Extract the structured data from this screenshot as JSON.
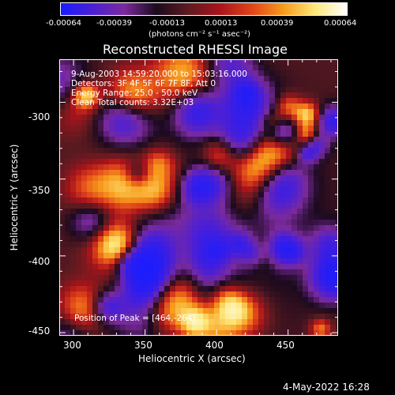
{
  "colorbar": {
    "ticks": [
      "-0.00064",
      "-0.00039",
      "-0.00013",
      "0.00013",
      "0.00039",
      "0.00064"
    ],
    "unit": "(photons cm⁻² s⁻¹ asec⁻²)",
    "colors": [
      "#1a1cff",
      "#4b1fd6",
      "#7a2a9c",
      "#1b0a1e",
      "#5d1a20",
      "#a8141b",
      "#e0431a",
      "#f79a1c",
      "#fde87a",
      "#ffffff"
    ]
  },
  "chart_data": {
    "type": "heatmap",
    "title": "Reconstructed RHESSI Image",
    "xlabel": "Heliocentric X (arcsec)",
    "ylabel": "Heliocentric Y (arcsec)",
    "xlim": [
      290,
      485
    ],
    "ylim": [
      -452,
      -272
    ],
    "xticks": [
      300,
      350,
      400,
      450
    ],
    "yticks": [
      -300,
      -350,
      -400,
      -450
    ],
    "value_range": [
      -0.00064,
      0.00064
    ],
    "annotations": [
      "9-Aug-2003 14:59:20.000 to 15:03:16.000",
      "Detectors: 3F 4F 5F 6F 7F 8F, Att 0",
      "Energy Range: 25.0 - 50.0 keV",
      "Clean     Total counts: 3.32E+03"
    ],
    "peak_label": "Position of Peak = [464,-264]",
    "grid": false
  },
  "footer": {
    "date": "4-May-2022 16:28"
  }
}
